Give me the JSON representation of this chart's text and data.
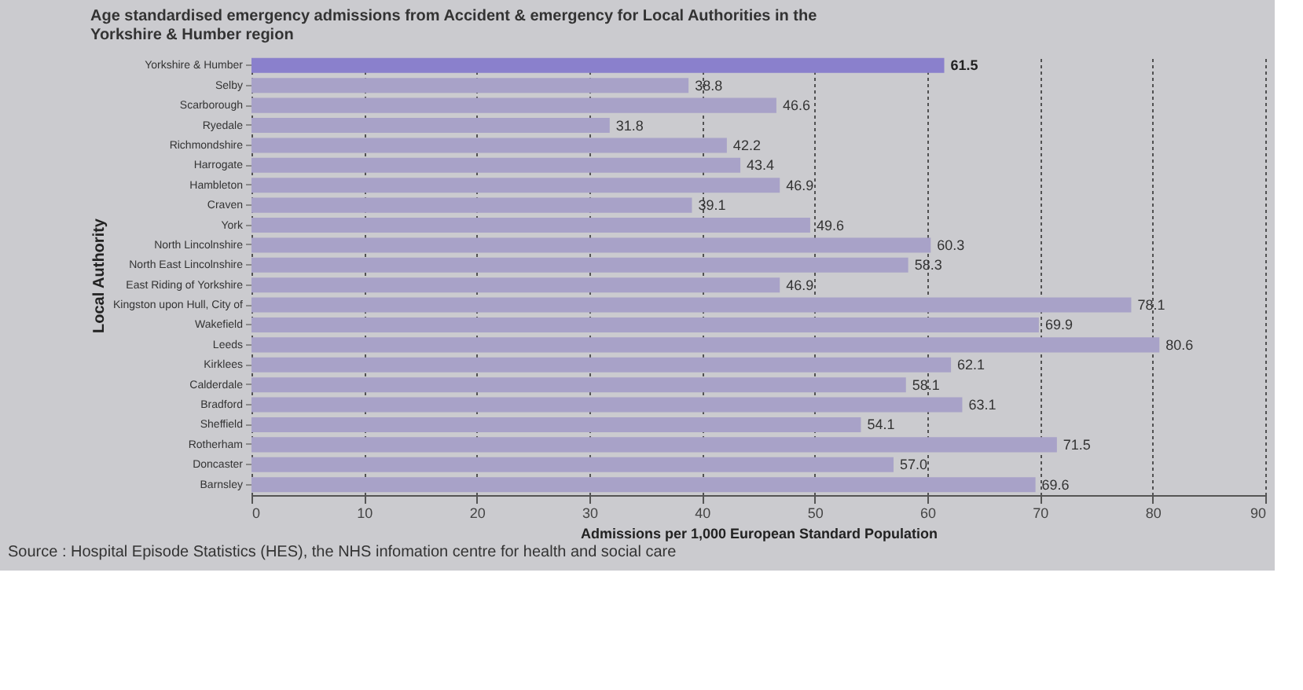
{
  "chart_data": {
    "type": "bar",
    "orientation": "horizontal",
    "title": "Age standardised emergency admissions from Accident & emergency for Local Authorities in the Yorkshire & Humber region",
    "xlabel": "Admissions per 1,000 European Standard Population",
    "ylabel": "Local Authority",
    "categories": [
      "Yorkshire & Humber",
      "Selby",
      "Scarborough",
      "Ryedale",
      "Richmondshire",
      "Harrogate",
      "Hambleton",
      "Craven",
      "York",
      "North Lincolnshire",
      "North East Lincolnshire",
      "East Riding of Yorkshire",
      "Kingston upon Hull, City of",
      "Wakefield",
      "Leeds",
      "Kirklees",
      "Calderdale",
      "Bradford",
      "Sheffield",
      "Rotherham",
      "Doncaster",
      "Barnsley"
    ],
    "values": [
      61.5,
      38.8,
      46.6,
      31.8,
      42.2,
      43.4,
      46.9,
      39.1,
      49.6,
      60.3,
      58.3,
      46.9,
      78.1,
      69.9,
      80.6,
      62.1,
      58.1,
      63.1,
      54.1,
      71.5,
      57.0,
      69.6
    ],
    "colors": [
      "#8a80cc",
      "#a8a2c8",
      "#a8a2c8",
      "#a8a2c8",
      "#a8a2c8",
      "#a8a2c8",
      "#a8a2c8",
      "#a8a2c8",
      "#a8a2c8",
      "#a8a2c8",
      "#a8a2c8",
      "#a8a2c8",
      "#a8a2c8",
      "#a8a2c8",
      "#a8a2c8",
      "#a8a2c8",
      "#a8a2c8",
      "#a8a2c8",
      "#a8a2c8",
      "#a8a2c8",
      "#a8a2c8",
      "#a8a2c8"
    ],
    "xlim": [
      0,
      90
    ],
    "xticks": [
      0,
      10,
      20,
      30,
      40,
      50,
      60,
      70,
      80,
      90
    ],
    "value_labels": [
      "61.5",
      "38.8",
      "46.6",
      "31.8",
      "42.2",
      "43.4",
      "46.9",
      "39.1",
      "49.6",
      "60.3",
      "58.3",
      "46.9",
      "78.1",
      "69.9",
      "80.6",
      "62.1",
      "58.1",
      "63.1",
      "54.1",
      "71.5",
      "57.0",
      "69.6"
    ],
    "grid": "x",
    "annotations": [
      "Source : Hospital Episode Statistics (HES), the NHS infomation centre for health and social care"
    ]
  }
}
